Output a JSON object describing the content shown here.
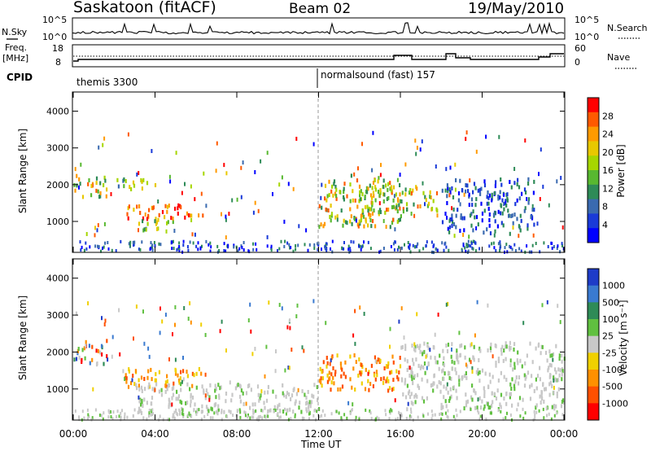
{
  "header": {
    "station": "Saskatoon (fitACF)",
    "beam": "Beam 02",
    "date": "19/May/2010"
  },
  "noise_panel": {
    "left_label": "N.Sky",
    "right_label": "N.Search",
    "left_ticks": [
      "10^5",
      "10^0"
    ],
    "right_ticks": [
      "10^5",
      "10^0"
    ]
  },
  "freq_panel": {
    "left_label_1": "Freq.",
    "left_label_2": "[MHz]",
    "right_label": "Nave",
    "left_ticks": [
      "18",
      "8"
    ],
    "right_ticks": [
      "60",
      "0"
    ]
  },
  "cpid": {
    "label": "CPID",
    "segments": [
      {
        "name": "themis 3300",
        "start_hour": 0
      },
      {
        "name": "normalsound (fast) 157",
        "start_hour": 12
      }
    ]
  },
  "time_axis": {
    "title": "Time UT",
    "ticks": [
      "00:00",
      "04:00",
      "08:00",
      "12:00",
      "16:00",
      "20:00",
      "00:00"
    ]
  },
  "chart_data": [
    {
      "type": "heatmap",
      "title": "Power",
      "ylabel": "Slant Range [km]",
      "xlabel": "Time UT",
      "xlim": [
        0,
        24
      ],
      "ylim": [
        180,
        4500
      ],
      "y_ticks": [
        1000,
        2000,
        3000,
        4000
      ],
      "colorbar": {
        "label": "Power [dB]",
        "ticks": [
          "28",
          "24",
          "20",
          "16",
          "12",
          "8",
          "4"
        ],
        "colors": [
          "#ff0000",
          "#ff5a00",
          "#ff9a00",
          "#e8c800",
          "#a6d600",
          "#58b830",
          "#2e8b57",
          "#3a6ab0",
          "#1a3ad8",
          "#0000ff"
        ]
      },
      "regions": [
        {
          "t0": 0.0,
          "t1": 1.6,
          "r0": 1700,
          "r1": 2300,
          "level": "high"
        },
        {
          "t0": 1.5,
          "t1": 4.0,
          "r0": 1900,
          "r1": 2200,
          "level": "medium"
        },
        {
          "t0": 2.5,
          "t1": 6.3,
          "r0": 1100,
          "r1": 1500,
          "level": "very high"
        },
        {
          "t0": 3.0,
          "t1": 5.0,
          "r0": 800,
          "r1": 1100,
          "level": "medium"
        },
        {
          "t0": 12.0,
          "t1": 16.0,
          "r0": 900,
          "r1": 2300,
          "level": "high"
        },
        {
          "t0": 14.0,
          "t1": 17.8,
          "r0": 1300,
          "r1": 2000,
          "level": "high"
        },
        {
          "t0": 18.0,
          "t1": 22.5,
          "r0": 700,
          "r1": 2200,
          "level": "low"
        }
      ]
    },
    {
      "type": "heatmap",
      "title": "Velocity",
      "ylabel": "Slant Range [km]",
      "xlabel": "Time UT",
      "xlim": [
        0,
        24
      ],
      "ylim": [
        180,
        4500
      ],
      "y_ticks": [
        1000,
        2000,
        3000,
        4000
      ],
      "colorbar": {
        "label": "Velocity [m s⁻¹]",
        "ticks": [
          "1000",
          "500",
          "100",
          "25",
          "-25",
          "-100",
          "-500",
          "-1000"
        ],
        "colors": [
          "#1e3cc8",
          "#3a7ad0",
          "#2e8b57",
          "#60c040",
          "#c8c8c8",
          "#f0d000",
          "#ff9000",
          "#ff5000",
          "#ff0000"
        ]
      },
      "regions": [
        {
          "t0": 0.0,
          "t1": 1.6,
          "r0": 1700,
          "r1": 2400,
          "level": "mixed"
        },
        {
          "t0": 2.5,
          "t1": 6.3,
          "r0": 1100,
          "r1": 1600,
          "level": "negative"
        },
        {
          "t0": 3.0,
          "t1": 12.0,
          "r0": 400,
          "r1": 1200,
          "level": "near zero"
        },
        {
          "t0": 12.0,
          "t1": 16.0,
          "r0": 1000,
          "r1": 2000,
          "level": "negative"
        },
        {
          "t0": 16.0,
          "t1": 24.0,
          "r0": 500,
          "r1": 2300,
          "level": "near zero"
        }
      ]
    }
  ]
}
